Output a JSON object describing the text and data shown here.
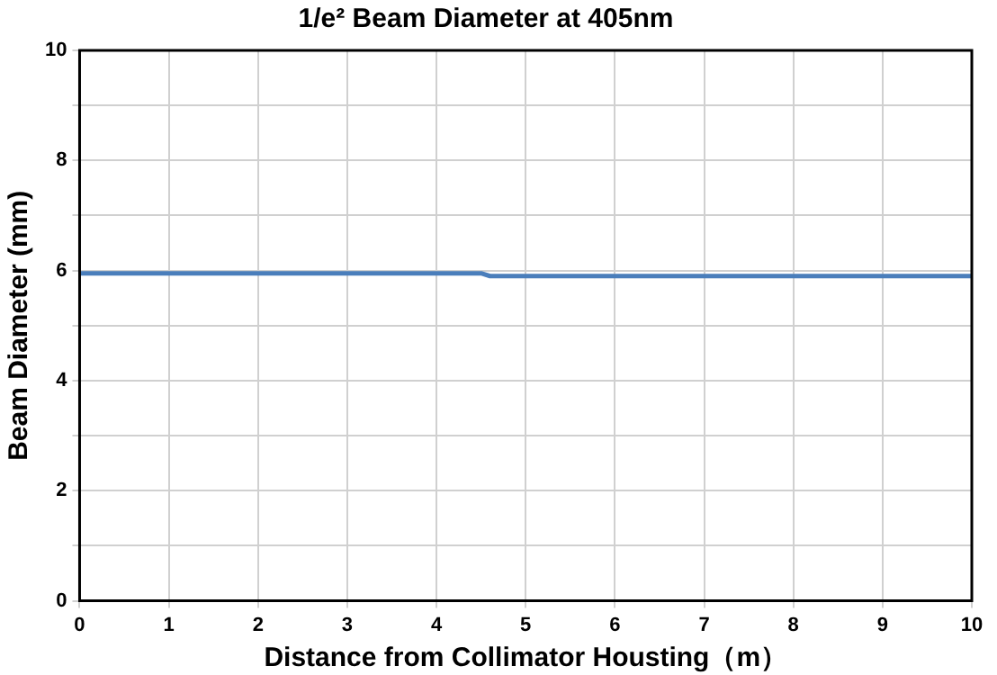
{
  "chart_data": {
    "type": "line",
    "title": "1/e² Beam Diameter at 405nm",
    "xlabel": "Distance from Collimator Housting（m）",
    "ylabel": "Beam Diameter (mm)",
    "x": [
      0,
      1,
      2,
      3,
      4,
      4.5,
      4.6,
      5,
      6,
      7,
      8,
      9,
      10
    ],
    "series": [
      {
        "color": "#4a7ebb",
        "values": [
          5.95,
          5.95,
          5.95,
          5.95,
          5.95,
          5.95,
          5.9,
          5.9,
          5.9,
          5.9,
          5.9,
          5.9,
          5.9
        ]
      }
    ],
    "xlim": [
      0,
      10
    ],
    "xticks": [
      0,
      1,
      2,
      3,
      4,
      5,
      6,
      7,
      8,
      9,
      10
    ],
    "ylim": [
      0,
      10
    ],
    "yticks": [
      0,
      {
        "value": 1,
        "label": null
      },
      2,
      {
        "value": 3,
        "label": null
      },
      4,
      {
        "value": 5,
        "label": null
      },
      6,
      {
        "value": 7,
        "label": null
      },
      8,
      {
        "value": 9,
        "label": null
      },
      10
    ],
    "grid": true,
    "legend": false,
    "marker": "none",
    "line_style": "solid"
  }
}
